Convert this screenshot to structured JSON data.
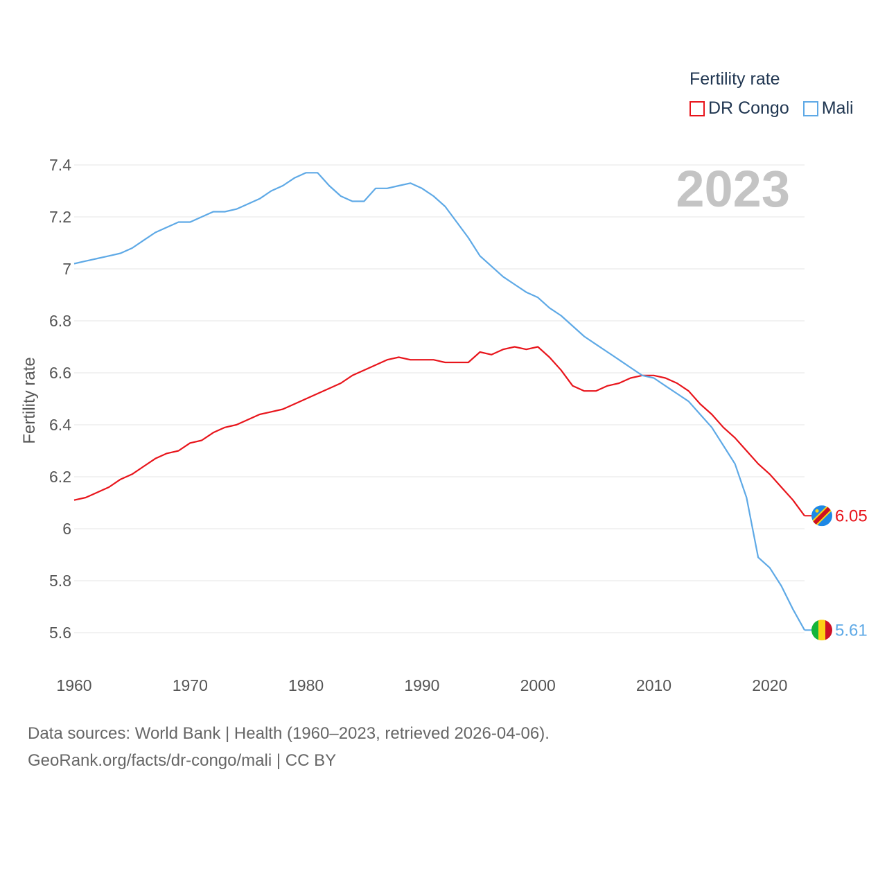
{
  "legend": {
    "title": "Fertility rate",
    "items": [
      {
        "name": "DR Congo",
        "color": "#e8141b"
      },
      {
        "name": "Mali",
        "color": "#5ea9e6"
      }
    ]
  },
  "footer": {
    "line1": "Data sources: World Bank | Health (1960–2023, retrieved 2026-04-06).",
    "line2": "GeoRank.org/facts/dr-congo/mali | CC BY"
  },
  "chart_data": {
    "type": "line",
    "year_label": "2023",
    "ylabel": "Fertility rate",
    "xlim": [
      1960,
      2023
    ],
    "ylim": [
      5.5,
      7.45
    ],
    "x_ticks": [
      1960,
      1970,
      1980,
      1990,
      2000,
      2010,
      2020
    ],
    "y_ticks": [
      {
        "value": 5.6,
        "label": "5.6"
      },
      {
        "value": 5.8,
        "label": "5.8"
      },
      {
        "value": 6.0,
        "label": "6"
      },
      {
        "value": 6.2,
        "label": "6.2"
      },
      {
        "value": 6.4,
        "label": "6.4"
      },
      {
        "value": 6.6,
        "label": "6.6"
      },
      {
        "value": 6.8,
        "label": "6.8"
      },
      {
        "value": 7.0,
        "label": "7"
      },
      {
        "value": 7.2,
        "label": "7.2"
      },
      {
        "value": 7.4,
        "label": "7.4"
      }
    ],
    "x": [
      1960,
      1961,
      1962,
      1963,
      1964,
      1965,
      1966,
      1967,
      1968,
      1969,
      1970,
      1971,
      1972,
      1973,
      1974,
      1975,
      1976,
      1977,
      1978,
      1979,
      1980,
      1981,
      1982,
      1983,
      1984,
      1985,
      1986,
      1987,
      1988,
      1989,
      1990,
      1991,
      1992,
      1993,
      1994,
      1995,
      1996,
      1997,
      1998,
      1999,
      2000,
      2001,
      2002,
      2003,
      2004,
      2005,
      2006,
      2007,
      2008,
      2009,
      2010,
      2011,
      2012,
      2013,
      2014,
      2015,
      2016,
      2017,
      2018,
      2019,
      2020,
      2021,
      2022,
      2023
    ],
    "series": [
      {
        "name": "DR Congo",
        "color": "#e8141b",
        "end_label": "6.05",
        "values": [
          6.11,
          6.12,
          6.14,
          6.16,
          6.19,
          6.21,
          6.24,
          6.27,
          6.29,
          6.3,
          6.33,
          6.34,
          6.37,
          6.39,
          6.4,
          6.42,
          6.44,
          6.45,
          6.46,
          6.48,
          6.5,
          6.52,
          6.54,
          6.56,
          6.59,
          6.61,
          6.63,
          6.65,
          6.66,
          6.65,
          6.65,
          6.65,
          6.64,
          6.64,
          6.64,
          6.68,
          6.67,
          6.69,
          6.7,
          6.69,
          6.7,
          6.66,
          6.61,
          6.55,
          6.53,
          6.53,
          6.55,
          6.56,
          6.58,
          6.59,
          6.59,
          6.58,
          6.56,
          6.53,
          6.48,
          6.44,
          6.39,
          6.35,
          6.3,
          6.25,
          6.21,
          6.16,
          6.11,
          6.05
        ]
      },
      {
        "name": "Mali",
        "color": "#5ea9e6",
        "end_label": "5.61",
        "values": [
          7.02,
          7.03,
          7.04,
          7.05,
          7.06,
          7.08,
          7.11,
          7.14,
          7.16,
          7.18,
          7.18,
          7.2,
          7.22,
          7.22,
          7.23,
          7.25,
          7.27,
          7.3,
          7.32,
          7.35,
          7.37,
          7.37,
          7.32,
          7.28,
          7.26,
          7.26,
          7.31,
          7.31,
          7.32,
          7.33,
          7.31,
          7.28,
          7.24,
          7.18,
          7.12,
          7.05,
          7.01,
          6.97,
          6.94,
          6.91,
          6.89,
          6.85,
          6.82,
          6.78,
          6.74,
          6.71,
          6.68,
          6.65,
          6.62,
          6.59,
          6.58,
          6.55,
          6.52,
          6.49,
          6.44,
          6.39,
          6.32,
          6.25,
          6.12,
          5.89,
          5.85,
          5.78,
          5.69,
          5.61
        ]
      }
    ]
  }
}
